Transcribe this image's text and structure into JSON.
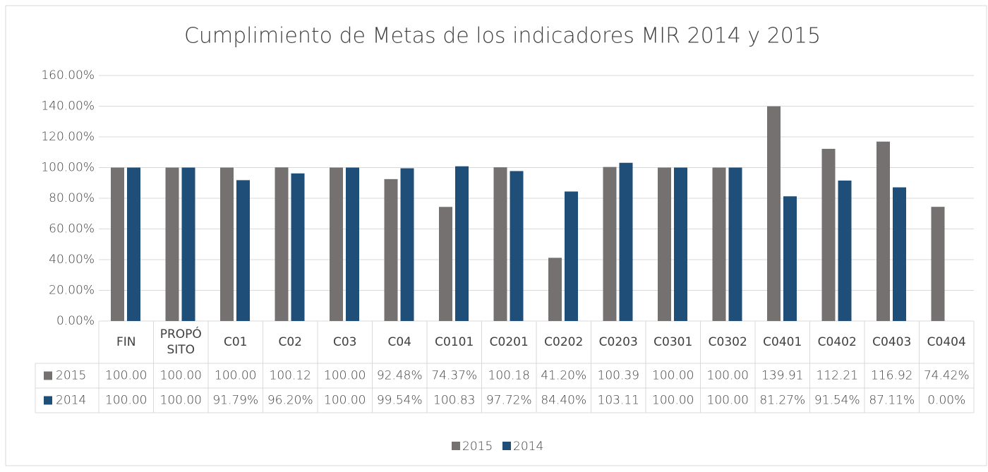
{
  "chart_data": {
    "type": "bar",
    "title": "Cumplimiento de Metas de los indicadores MIR 2014 y 2015",
    "categories": [
      "FIN",
      "PROPÓSITO",
      "C01",
      "C02",
      "C03",
      "C04",
      "C0101",
      "C0201",
      "C0202",
      "C0203",
      "C0301",
      "C0302",
      "C0401",
      "C0402",
      "C0403",
      "C0404"
    ],
    "series": [
      {
        "name": "2015",
        "color": "#767171",
        "values": [
          100,
          100,
          100,
          100.12,
          100,
          92.48,
          74.37,
          100.18,
          41.2,
          100.39,
          100,
          100,
          139.91,
          112.21,
          116.92,
          74.42
        ],
        "value_labels": [
          "100.00",
          "100.00",
          "100.00",
          "100.12",
          "100.00",
          "92.48%",
          "74.37%",
          "100.18",
          "41.20%",
          "100.39",
          "100.00",
          "100.00",
          "139.91",
          "112.21",
          "116.92",
          "74.42%"
        ]
      },
      {
        "name": "2014",
        "color": "#1f4e79",
        "values": [
          100,
          100,
          91.79,
          96.2,
          100,
          99.54,
          100.83,
          97.72,
          84.4,
          103.11,
          100,
          100,
          81.27,
          91.54,
          87.11,
          0
        ],
        "value_labels": [
          "100.00",
          "100.00",
          "91.79%",
          "96.20%",
          "100.00",
          "99.54%",
          "100.83",
          "97.72%",
          "84.40%",
          "103.11",
          "100.00",
          "100.00",
          "81.27%",
          "91.54%",
          "87.11%",
          "0.00%"
        ]
      }
    ],
    "ylim": [
      0,
      160
    ],
    "yticks": [
      {
        "value": 0,
        "label": "0.00%"
      },
      {
        "value": 20,
        "label": "20.00%"
      },
      {
        "value": 40,
        "label": "40.00%"
      },
      {
        "value": 60,
        "label": "60.00%"
      },
      {
        "value": 80,
        "label": "80.00%"
      },
      {
        "value": 100,
        "label": "100.00%"
      },
      {
        "value": 120,
        "label": "120.00%"
      },
      {
        "value": 140,
        "label": "140.00%"
      },
      {
        "value": 160,
        "label": "160.00%"
      }
    ],
    "grid": true,
    "legend": "bottom"
  }
}
